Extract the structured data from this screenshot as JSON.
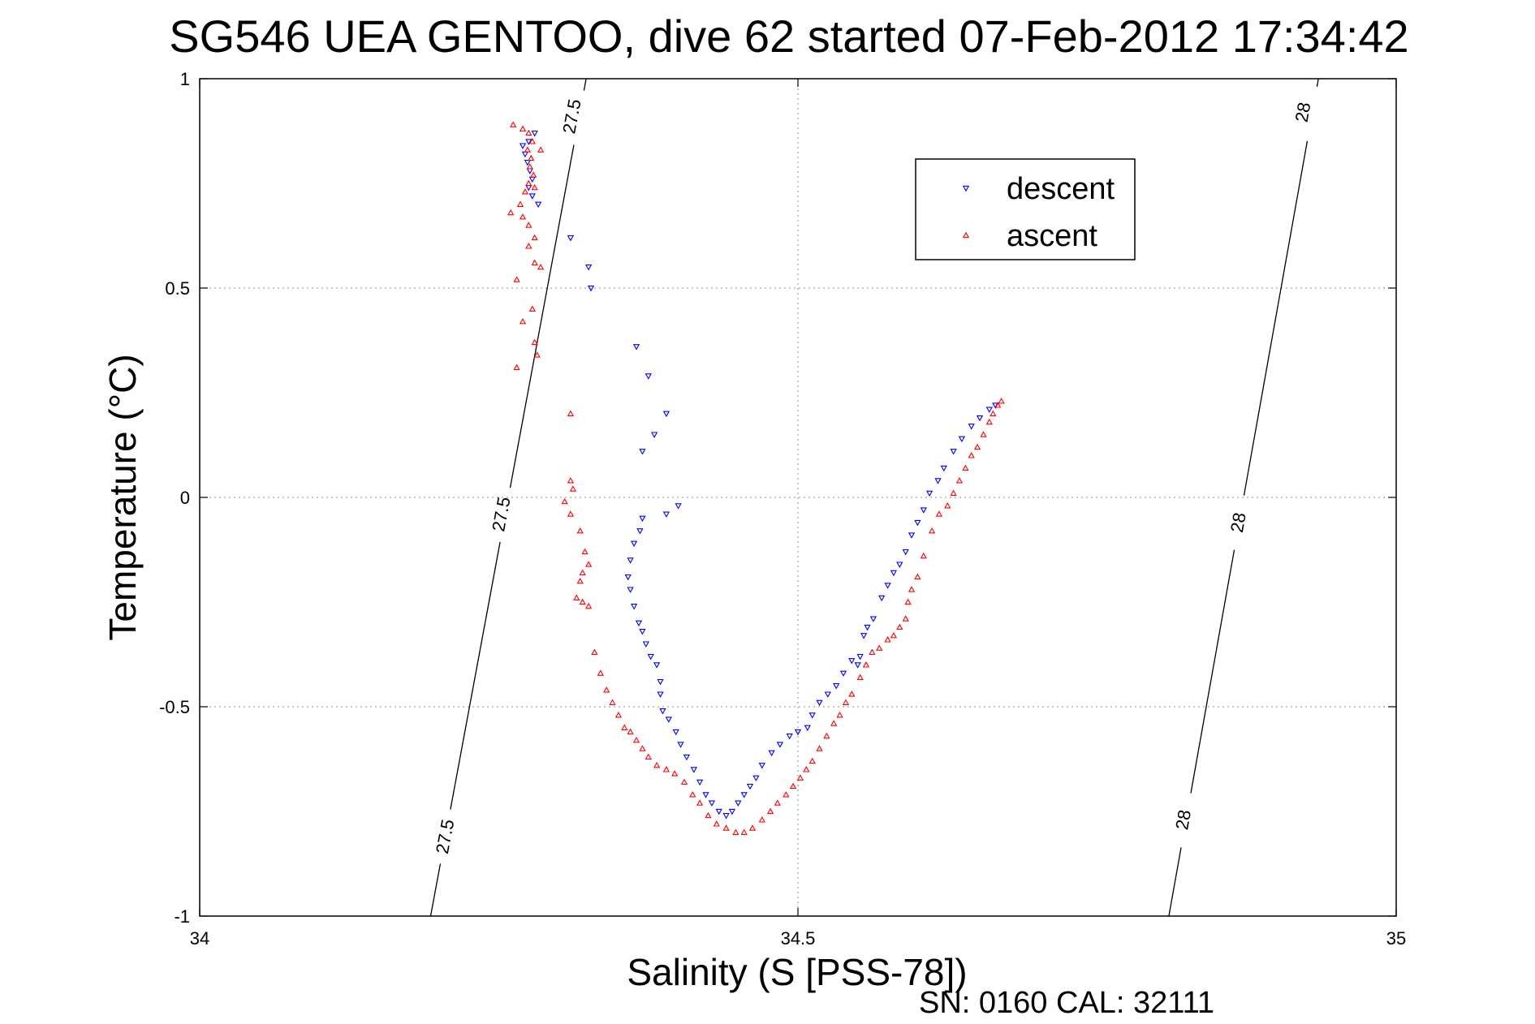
{
  "chart_data": {
    "type": "scatter",
    "title": "SG546 UEA GENTOO, dive 62 started 07-Feb-2012 17:34:42",
    "xlabel": "Salinity (S [PSS-78])",
    "ylabel": "Temperature (°C)",
    "xlim": [
      34,
      35
    ],
    "ylim": [
      -1,
      1
    ],
    "x_ticks": [
      34,
      34.5,
      35
    ],
    "x_tick_labels": [
      "34",
      "34.5",
      "35"
    ],
    "y_ticks": [
      1,
      0.5,
      0,
      -0.5,
      -1
    ],
    "y_tick_labels": [
      "1",
      "0.5",
      "0",
      "-0.5",
      "-1"
    ],
    "grid": true,
    "legend_position": "top-right",
    "footer": "SN: 0160  CAL: 32111",
    "contours": [
      {
        "label": "27.5",
        "points": [
          [
            34.193,
            -1.0
          ],
          [
            34.323,
            1.0
          ]
        ],
        "label_positions": [
          [
            34.205,
            -0.81
          ],
          [
            34.252,
            -0.04
          ],
          [
            34.311,
            0.91
          ]
        ]
      },
      {
        "label": "28",
        "points": [
          [
            34.81,
            -1.0
          ],
          [
            34.935,
            1.0
          ]
        ],
        "label_positions": [
          [
            34.822,
            -0.77
          ],
          [
            34.868,
            -0.06
          ],
          [
            34.922,
            0.92
          ]
        ]
      }
    ],
    "series": [
      {
        "name": "descent",
        "color": "#0000ff",
        "marker": "triangle-down",
        "points": [
          [
            34.27,
            0.84
          ],
          [
            34.272,
            0.82
          ],
          [
            34.274,
            0.8
          ],
          [
            34.276,
            0.78
          ],
          [
            34.278,
            0.76
          ],
          [
            34.275,
            0.74
          ],
          [
            34.278,
            0.72
          ],
          [
            34.283,
            0.7
          ],
          [
            34.275,
            0.85
          ],
          [
            34.28,
            0.87
          ],
          [
            34.31,
            0.62
          ],
          [
            34.325,
            0.55
          ],
          [
            34.327,
            0.5
          ],
          [
            34.365,
            0.36
          ],
          [
            34.375,
            0.29
          ],
          [
            34.39,
            0.2
          ],
          [
            34.38,
            0.15
          ],
          [
            34.37,
            0.11
          ],
          [
            34.4,
            -0.02
          ],
          [
            34.39,
            -0.04
          ],
          [
            34.37,
            -0.05
          ],
          [
            34.368,
            -0.08
          ],
          [
            34.363,
            -0.11
          ],
          [
            34.36,
            -0.15
          ],
          [
            34.358,
            -0.19
          ],
          [
            34.36,
            -0.22
          ],
          [
            34.363,
            -0.26
          ],
          [
            34.367,
            -0.3
          ],
          [
            34.37,
            -0.32
          ],
          [
            34.373,
            -0.35
          ],
          [
            34.377,
            -0.38
          ],
          [
            34.382,
            -0.4
          ],
          [
            34.385,
            -0.44
          ],
          [
            34.385,
            -0.47
          ],
          [
            34.387,
            -0.51
          ],
          [
            34.392,
            -0.53
          ],
          [
            34.398,
            -0.56
          ],
          [
            34.402,
            -0.59
          ],
          [
            34.407,
            -0.62
          ],
          [
            34.413,
            -0.65
          ],
          [
            34.418,
            -0.68
          ],
          [
            34.423,
            -0.71
          ],
          [
            34.428,
            -0.73
          ],
          [
            34.434,
            -0.75
          ],
          [
            34.44,
            -0.76
          ],
          [
            34.445,
            -0.75
          ],
          [
            34.45,
            -0.73
          ],
          [
            34.455,
            -0.71
          ],
          [
            34.46,
            -0.69
          ],
          [
            34.465,
            -0.67
          ],
          [
            34.47,
            -0.64
          ],
          [
            34.478,
            -0.61
          ],
          [
            34.485,
            -0.59
          ],
          [
            34.493,
            -0.57
          ],
          [
            34.5,
            -0.56
          ],
          [
            34.508,
            -0.55
          ],
          [
            34.512,
            -0.52
          ],
          [
            34.518,
            -0.49
          ],
          [
            34.525,
            -0.47
          ],
          [
            34.532,
            -0.45
          ],
          [
            34.538,
            -0.42
          ],
          [
            34.545,
            -0.39
          ],
          [
            34.55,
            -0.4
          ],
          [
            34.552,
            -0.38
          ],
          [
            34.555,
            -0.33
          ],
          [
            34.558,
            -0.31
          ],
          [
            34.563,
            -0.29
          ],
          [
            34.57,
            -0.24
          ],
          [
            34.575,
            -0.21
          ],
          [
            34.58,
            -0.18
          ],
          [
            34.585,
            -0.16
          ],
          [
            34.59,
            -0.13
          ],
          [
            34.595,
            -0.09
          ],
          [
            34.6,
            -0.06
          ],
          [
            34.605,
            -0.03
          ],
          [
            34.61,
            0.01
          ],
          [
            34.617,
            0.04
          ],
          [
            34.622,
            0.07
          ],
          [
            34.63,
            0.11
          ],
          [
            34.637,
            0.14
          ],
          [
            34.645,
            0.17
          ],
          [
            34.652,
            0.19
          ],
          [
            34.66,
            0.21
          ],
          [
            34.665,
            0.22
          ]
        ]
      },
      {
        "name": "ascent",
        "color": "#ff0000",
        "marker": "triangle-up",
        "points": [
          [
            34.262,
            0.89
          ],
          [
            34.27,
            0.88
          ],
          [
            34.275,
            0.87
          ],
          [
            34.278,
            0.85
          ],
          [
            34.274,
            0.83
          ],
          [
            34.277,
            0.81
          ],
          [
            34.276,
            0.79
          ],
          [
            34.279,
            0.77
          ],
          [
            34.275,
            0.75
          ],
          [
            34.28,
            0.74
          ],
          [
            34.285,
            0.83
          ],
          [
            34.272,
            0.73
          ],
          [
            34.268,
            0.7
          ],
          [
            34.26,
            0.68
          ],
          [
            34.27,
            0.67
          ],
          [
            34.275,
            0.65
          ],
          [
            34.28,
            0.62
          ],
          [
            34.275,
            0.6
          ],
          [
            34.28,
            0.56
          ],
          [
            34.285,
            0.55
          ],
          [
            34.265,
            0.52
          ],
          [
            34.278,
            0.45
          ],
          [
            34.27,
            0.42
          ],
          [
            34.28,
            0.37
          ],
          [
            34.282,
            0.34
          ],
          [
            34.265,
            0.31
          ],
          [
            34.31,
            0.2
          ],
          [
            34.31,
            0.04
          ],
          [
            34.312,
            0.02
          ],
          [
            34.305,
            -0.01
          ],
          [
            34.31,
            -0.04
          ],
          [
            34.318,
            -0.08
          ],
          [
            34.322,
            -0.13
          ],
          [
            34.325,
            -0.16
          ],
          [
            34.32,
            -0.18
          ],
          [
            34.318,
            -0.2
          ],
          [
            34.315,
            -0.24
          ],
          [
            34.32,
            -0.25
          ],
          [
            34.325,
            -0.26
          ],
          [
            34.33,
            -0.37
          ],
          [
            34.335,
            -0.42
          ],
          [
            34.34,
            -0.46
          ],
          [
            34.345,
            -0.49
          ],
          [
            34.35,
            -0.52
          ],
          [
            34.355,
            -0.55
          ],
          [
            34.36,
            -0.56
          ],
          [
            34.365,
            -0.58
          ],
          [
            34.37,
            -0.6
          ],
          [
            34.375,
            -0.62
          ],
          [
            34.382,
            -0.64
          ],
          [
            34.39,
            -0.65
          ],
          [
            34.397,
            -0.66
          ],
          [
            34.405,
            -0.68
          ],
          [
            34.412,
            -0.71
          ],
          [
            34.418,
            -0.73
          ],
          [
            34.425,
            -0.76
          ],
          [
            34.432,
            -0.78
          ],
          [
            34.44,
            -0.79
          ],
          [
            34.448,
            -0.8
          ],
          [
            34.455,
            -0.8
          ],
          [
            34.462,
            -0.79
          ],
          [
            34.47,
            -0.77
          ],
          [
            34.477,
            -0.75
          ],
          [
            34.483,
            -0.73
          ],
          [
            34.49,
            -0.71
          ],
          [
            34.496,
            -0.69
          ],
          [
            34.502,
            -0.67
          ],
          [
            34.507,
            -0.65
          ],
          [
            34.512,
            -0.63
          ],
          [
            34.518,
            -0.6
          ],
          [
            34.524,
            -0.57
          ],
          [
            34.53,
            -0.54
          ],
          [
            34.535,
            -0.52
          ],
          [
            34.54,
            -0.49
          ],
          [
            34.545,
            -0.47
          ],
          [
            34.552,
            -0.43
          ],
          [
            34.557,
            -0.4
          ],
          [
            34.562,
            -0.37
          ],
          [
            34.568,
            -0.36
          ],
          [
            34.575,
            -0.34
          ],
          [
            34.58,
            -0.33
          ],
          [
            34.585,
            -0.31
          ],
          [
            34.59,
            -0.29
          ],
          [
            34.592,
            -0.25
          ],
          [
            34.595,
            -0.22
          ],
          [
            34.6,
            -0.19
          ],
          [
            34.605,
            -0.14
          ],
          [
            34.612,
            -0.08
          ],
          [
            34.618,
            -0.04
          ],
          [
            34.625,
            -0.02
          ],
          [
            34.63,
            0.01
          ],
          [
            34.635,
            0.04
          ],
          [
            34.64,
            0.07
          ],
          [
            34.645,
            0.1
          ],
          [
            34.65,
            0.12
          ],
          [
            34.655,
            0.15
          ],
          [
            34.66,
            0.18
          ],
          [
            34.663,
            0.2
          ],
          [
            34.667,
            0.22
          ],
          [
            34.67,
            0.23
          ]
        ]
      }
    ]
  }
}
